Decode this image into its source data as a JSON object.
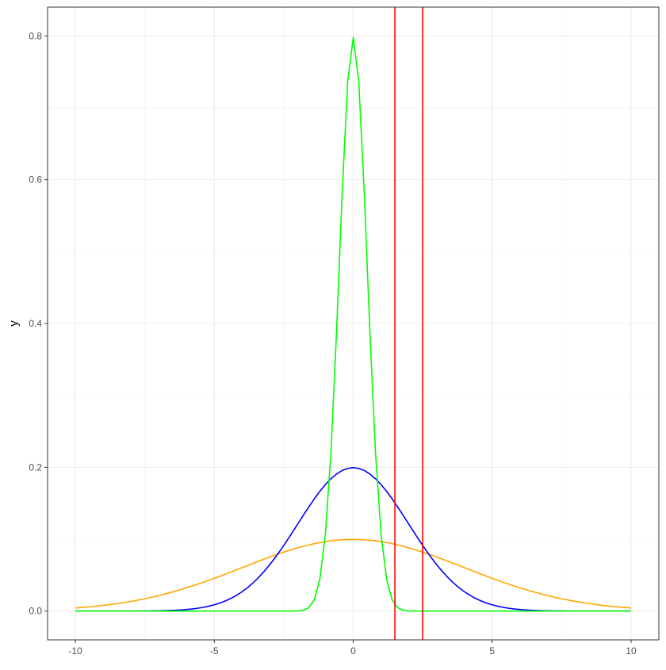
{
  "chart_data": {
    "type": "line",
    "title": "",
    "xlabel": "",
    "ylabel": "y",
    "xlim": [
      -11,
      11
    ],
    "ylim": [
      -0.04,
      0.84
    ],
    "xticks": [
      -10,
      -5,
      0,
      5,
      10
    ],
    "xtick_labels": [
      "-10",
      "-5",
      "0",
      "5",
      "10"
    ],
    "yticks": [
      0,
      0.2,
      0.4,
      0.6,
      0.8
    ],
    "ytick_labels": [
      "0.0",
      "0.2",
      "0.4",
      "0.6",
      "0.8"
    ],
    "x_minor_gridlines": [
      -7.5,
      -2.5,
      2.5,
      7.5
    ],
    "y_minor_gridlines": [
      0.1,
      0.3,
      0.5,
      0.7
    ],
    "grid": true,
    "legend": "none",
    "series": [
      {
        "color": "#FFA500",
        "function": "normal_density",
        "mean": 0,
        "sd": 4,
        "x_range": [
          -10,
          10
        ]
      },
      {
        "color": "#0000FF",
        "function": "normal_density",
        "mean": 0,
        "sd": 2,
        "x_range": [
          -10,
          10
        ]
      },
      {
        "color": "#00FF00",
        "function": "normal_density",
        "mean": 0,
        "sd": 0.5,
        "x_range": [
          -10,
          10
        ]
      }
    ],
    "vlines": [
      {
        "x": 1.5,
        "color": "#FF0000"
      },
      {
        "x": 2.5,
        "color": "#FF0000"
      }
    ]
  }
}
